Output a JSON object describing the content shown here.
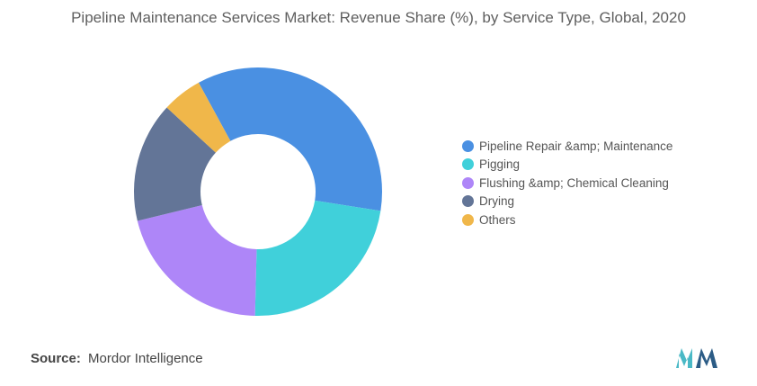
{
  "title": "Pipeline Maintenance Services Market: Revenue Share (%), by Service Type, Global, 2020",
  "chart_data": {
    "type": "pie",
    "donut": true,
    "categories": [
      "Pipeline Repair &amp; Maintenance",
      "Pigging",
      "Flushing &amp; Chemical Cleaning",
      "Drying",
      "Others"
    ],
    "values": [
      34,
      22,
      20,
      15,
      5
    ],
    "colors": [
      "#4A90E2",
      "#40D0DA",
      "#AE86F8",
      "#637597",
      "#F0B74A"
    ],
    "legend_position": "right"
  },
  "source": {
    "label": "Source:",
    "text": "Mordor Intelligence"
  },
  "logo": {
    "name": "mordor-intelligence-logo",
    "colors": [
      "#4AB9C6",
      "#2C5C86"
    ]
  }
}
